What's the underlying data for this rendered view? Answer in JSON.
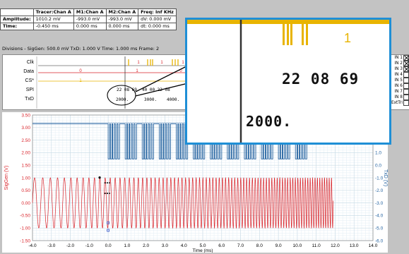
{
  "measurements": {
    "headers": [
      "",
      "Tracer:Chan A",
      "M1:Chan A",
      "M2:Chan A",
      "Freq: Inf KHz"
    ],
    "rows": [
      [
        "Amplitude:",
        "1010.2 mV",
        "-993.0 mV",
        "-993.0 mV",
        "dV: 0.000 mV"
      ],
      [
        "Time:",
        "-0.450 ms",
        "0.000 ms",
        "0.000 ms",
        "dt: 0.000 ms"
      ]
    ]
  },
  "status_line": "Divisions - SigGen: 500.0 mV  TxD: 1.000 V  Time: 1.000 ms  Frame: 2",
  "logic": {
    "channels": [
      "Clk",
      "Data",
      "CS*",
      "SPI",
      "TxD"
    ],
    "data_bits": [
      "0",
      "1",
      "0"
    ],
    "clk_ones": [
      "1",
      "1",
      "1"
    ],
    "cs_marker": "1",
    "spi_text": "22 08 69 ",
    "spi_text2": "40 00 22 08",
    "txd_values": [
      "2000.",
      "3000.",
      "4000."
    ]
  },
  "channel_panel": {
    "items": [
      {
        "label": "IN 1",
        "checked": true
      },
      {
        "label": "IN 2",
        "checked": true
      },
      {
        "label": "IN 3",
        "checked": true
      },
      {
        "label": "IN 4",
        "checked": false
      },
      {
        "label": "IN 5",
        "checked": false
      },
      {
        "label": "IN 6",
        "checked": false
      },
      {
        "label": "IN 7",
        "checked": false
      },
      {
        "label": "IN 8",
        "checked": false
      },
      {
        "label": "ExtTri",
        "checked": false
      }
    ]
  },
  "zoom": {
    "marker": "1",
    "spi": "22 08 69",
    "txd": "2000."
  },
  "chart_data": {
    "type": "line",
    "x_ticks": [
      "-4.0",
      "-3.0",
      "-2.0",
      "-1.0",
      "0.0",
      "1.0",
      "2.0",
      "3.0",
      "4.0",
      "5.0",
      "6.0",
      "7.0",
      "8.0",
      "9.0",
      "10.0",
      "11.0",
      "12.0",
      "13.0",
      "14.0"
    ],
    "y_left_ticks": [
      "3.50",
      "3.00",
      "2.50",
      "2.00",
      "1.50",
      "1.00",
      "0.50",
      "0.00",
      "-0.50",
      "-1.00",
      "-1.50"
    ],
    "y_right_ticks": [
      "4.0",
      "3.0",
      "2.0",
      "1.0",
      "0.0",
      "-1.0",
      "-2.0",
      "-3.0",
      "-4.0",
      "-5.0",
      "-6.0"
    ],
    "xlabel": "Time (ms)",
    "ylabel_left": "SigGen (V)",
    "ylabel_right": "TxD (V)",
    "xlim": [
      -4.0,
      14.0
    ],
    "ylim_left": [
      -1.5,
      3.5
    ],
    "series": [
      {
        "name": "SigGen",
        "color": "#d9232a",
        "kind": "chirp",
        "amplitude": 1.0,
        "xrange": [
          -4.0,
          11.9
        ]
      },
      {
        "name": "TxD",
        "color": "#1f5f9e",
        "kind": "digital",
        "high": 3.15,
        "low": 1.75
      }
    ]
  },
  "colors": {
    "accent": "#1f8fd6",
    "siggen": "#d9232a",
    "txd": "#1f5f9e",
    "clk": "#e8b400"
  }
}
